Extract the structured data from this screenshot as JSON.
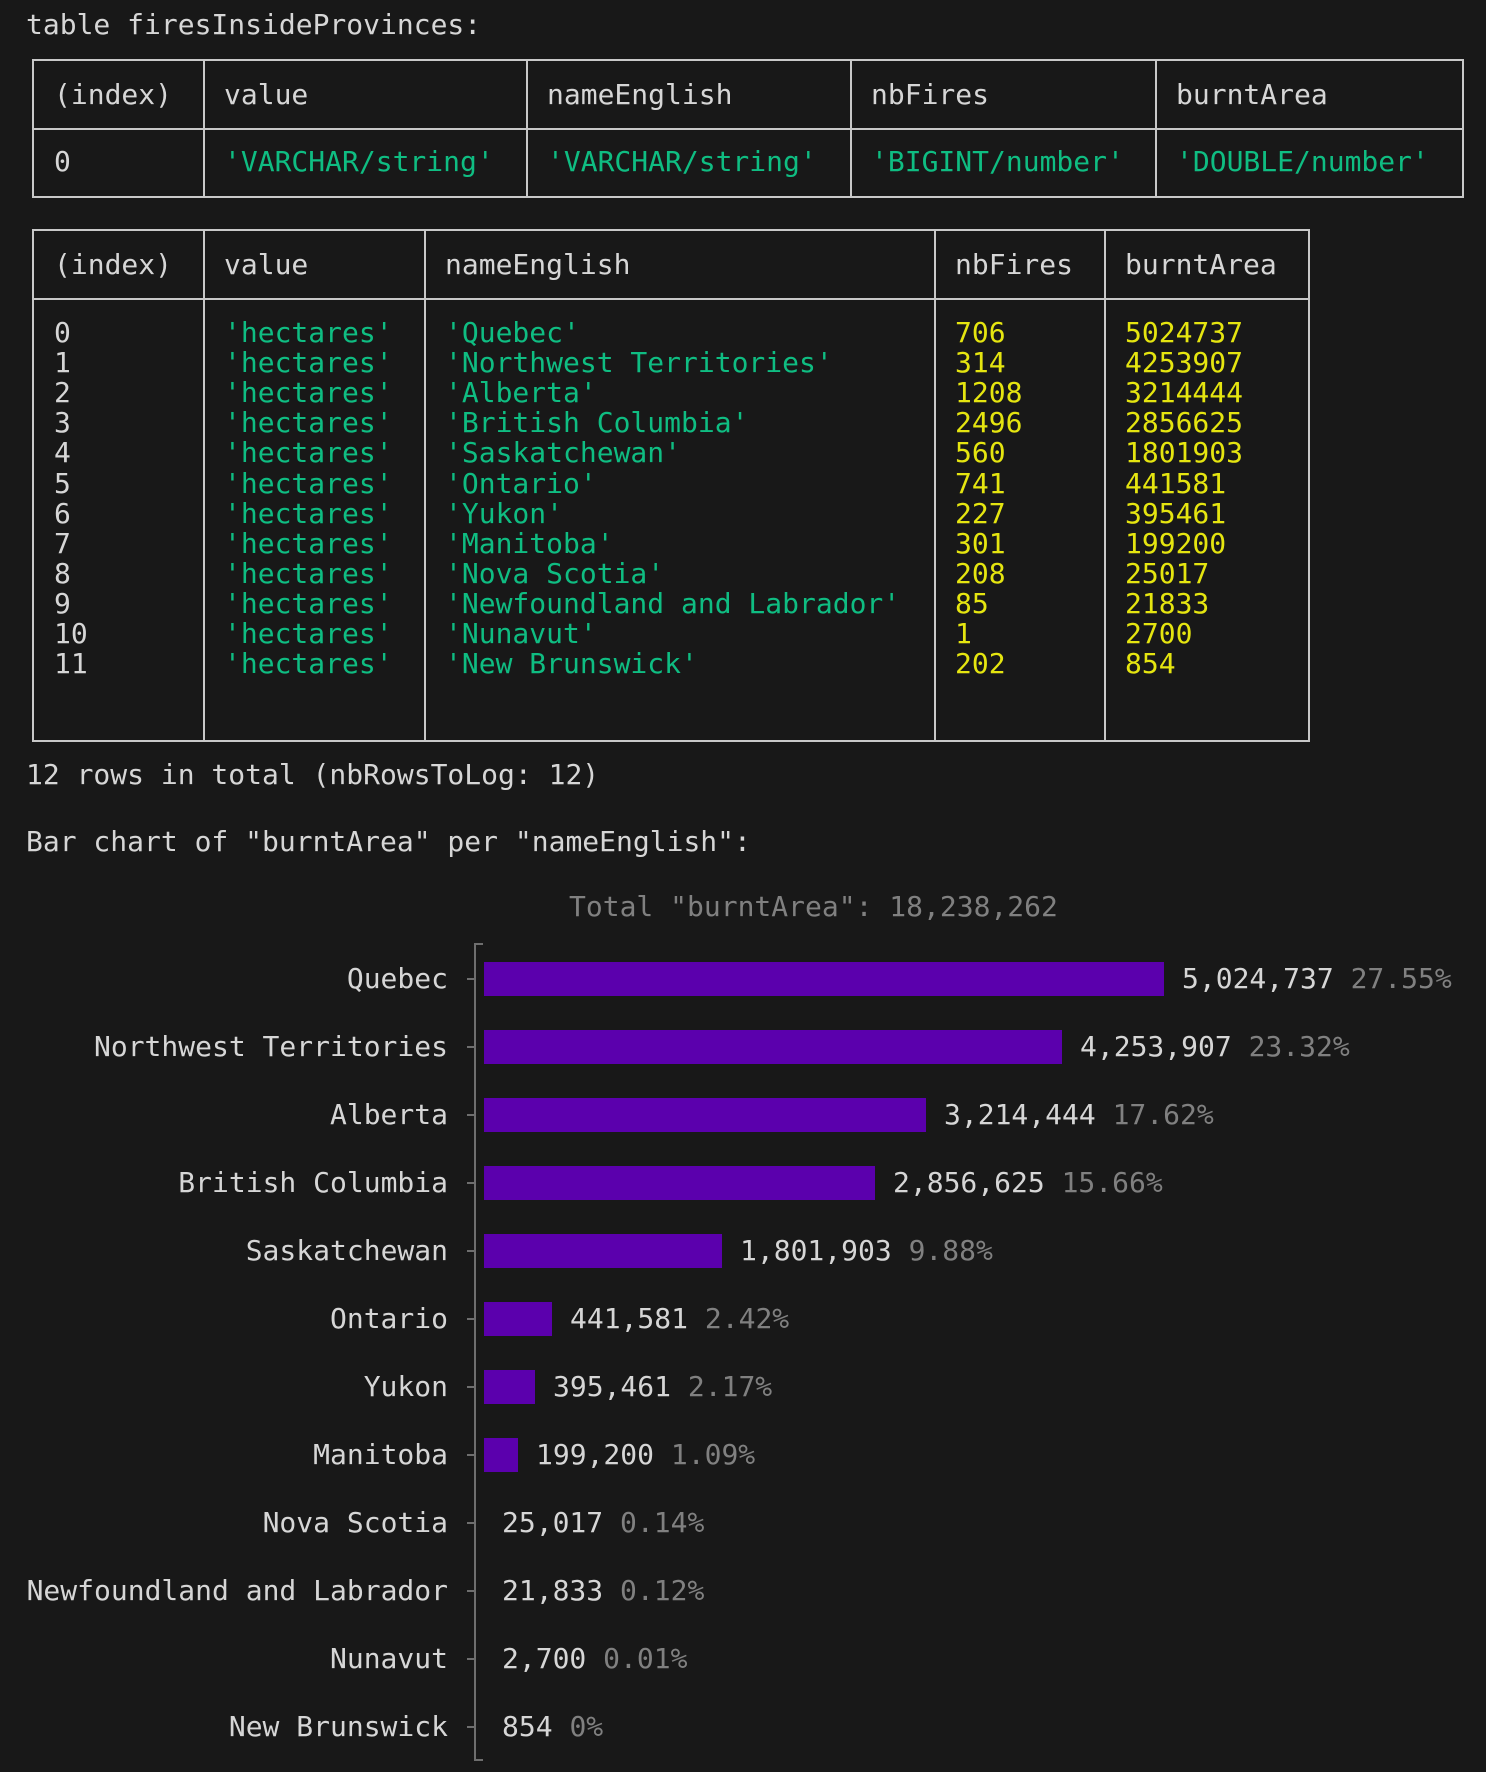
{
  "header": {
    "title": "table firesInsideProvinces:"
  },
  "types_table": {
    "columns": [
      "(index)",
      "value",
      "nameEnglish",
      "nbFires",
      "burntArea"
    ],
    "row": [
      "0",
      "'VARCHAR/string'",
      "'VARCHAR/string'",
      "'BIGINT/number'",
      "'DOUBLE/number'"
    ]
  },
  "data_table": {
    "columns": [
      "(index)",
      "value",
      "nameEnglish",
      "nbFires",
      "burntArea"
    ],
    "rows": [
      [
        "0",
        "'hectares'",
        "'Quebec'",
        "706",
        "5024737"
      ],
      [
        "1",
        "'hectares'",
        "'Northwest Territories'",
        "314",
        "4253907"
      ],
      [
        "2",
        "'hectares'",
        "'Alberta'",
        "1208",
        "3214444"
      ],
      [
        "3",
        "'hectares'",
        "'British Columbia'",
        "2496",
        "2856625"
      ],
      [
        "4",
        "'hectares'",
        "'Saskatchewan'",
        "560",
        "1801903"
      ],
      [
        "5",
        "'hectares'",
        "'Ontario'",
        "741",
        "441581"
      ],
      [
        "6",
        "'hectares'",
        "'Yukon'",
        "227",
        "395461"
      ],
      [
        "7",
        "'hectares'",
        "'Manitoba'",
        "301",
        "199200"
      ],
      [
        "8",
        "'hectares'",
        "'Nova Scotia'",
        "208",
        "25017"
      ],
      [
        "9",
        "'hectares'",
        "'Newfoundland and Labrador'",
        "85",
        "21833"
      ],
      [
        "10",
        "'hectares'",
        "'Nunavut'",
        "1",
        "2700"
      ],
      [
        "11",
        "'hectares'",
        "'New Brunswick'",
        "202",
        "854"
      ]
    ]
  },
  "footer": {
    "rows_total": "12 rows in total (nbRowsToLog: 12)",
    "chart_heading": "Bar chart of \"burntArea\" per \"nameEnglish\":"
  },
  "colors": {
    "background": "#181818",
    "string": "#0fbd82",
    "number": "#e5e510",
    "bar": "#5b00ad",
    "text": "#d6d6d6",
    "muted": "#808080",
    "axis": "#6e6e6e",
    "border": "#c8c8c8"
  },
  "chart_data": {
    "type": "bar",
    "orientation": "horizontal",
    "title": "Total \"burntArea\": 18,238,262",
    "xlabel": "burntArea",
    "ylabel": "nameEnglish",
    "total": 18238262,
    "grid": false,
    "legend": null,
    "categories": [
      "Quebec",
      "Northwest Territories",
      "Alberta",
      "British Columbia",
      "Saskatchewan",
      "Ontario",
      "Yukon",
      "Manitoba",
      "Nova Scotia",
      "Newfoundland and Labrador",
      "Nunavut",
      "New Brunswick"
    ],
    "values": [
      5024737,
      4253907,
      3214444,
      2856625,
      1801903,
      441581,
      395461,
      199200,
      25017,
      21833,
      2700,
      854
    ],
    "value_labels": [
      "5,024,737",
      "4,253,907",
      "3,214,444",
      "2,856,625",
      "1,801,903",
      "441,581",
      "395,461",
      "199,200",
      "25,017",
      "21,833",
      "2,700",
      "854"
    ],
    "percent_labels": [
      "27.55%",
      "23.32%",
      "17.62%",
      "15.66%",
      "9.88%",
      "2.42%",
      "2.17%",
      "1.09%",
      "0.14%",
      "0.12%",
      "0.01%",
      "0%"
    ]
  }
}
